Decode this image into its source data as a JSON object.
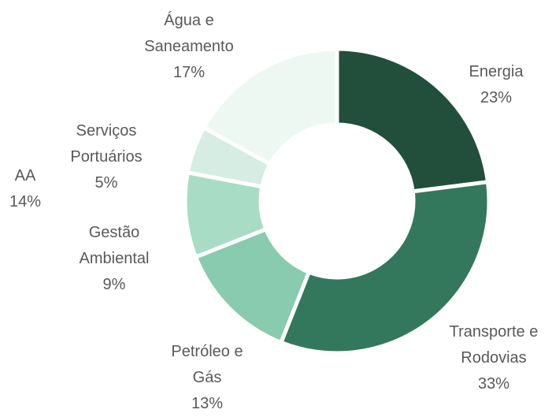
{
  "chart_data": {
    "type": "donut",
    "categories": [
      "Energia",
      "Transporte e Rodovias",
      "Petróleo e Gás",
      "Gestão Ambiental",
      "Serviços Portuários",
      "Água e Saneamento"
    ],
    "values": [
      23,
      33,
      13,
      9,
      5,
      17
    ],
    "value_labels": [
      "23%",
      "33%",
      "13%",
      "9%",
      "5%",
      "17%"
    ],
    "colors": [
      "#214f3c",
      "#33785c",
      "#88cbaf",
      "#a9dcc5",
      "#d5ede2",
      "#eef8f3"
    ],
    "annotations": [
      "AA",
      "14%"
    ]
  }
}
